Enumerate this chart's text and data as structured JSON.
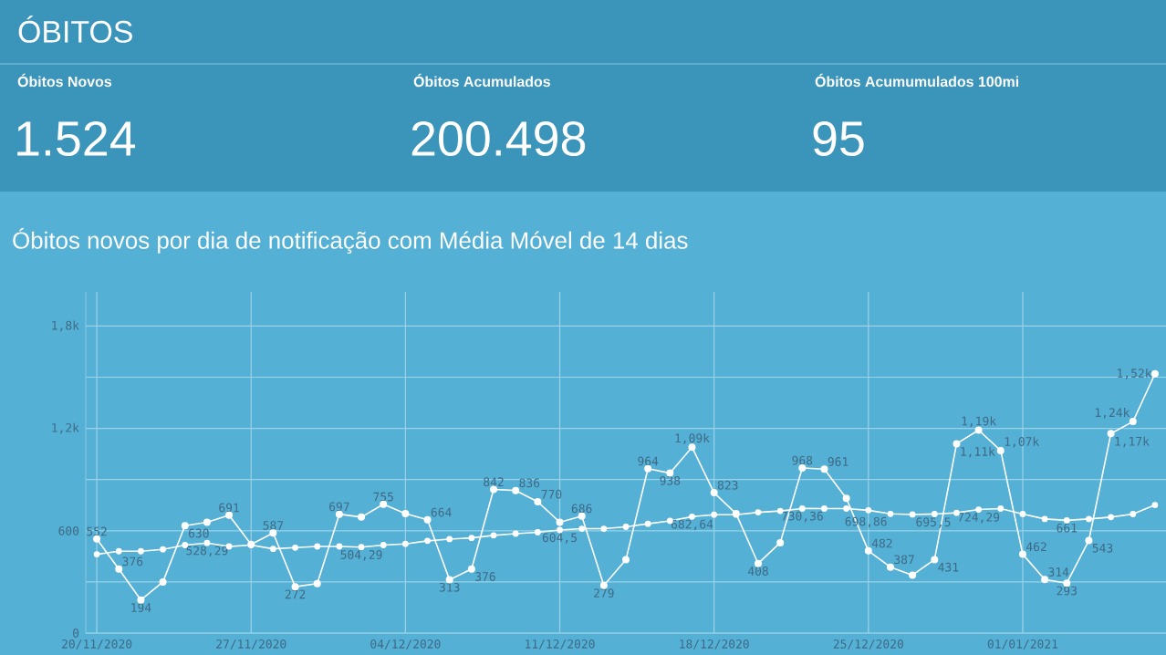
{
  "chart_data": [
    {
      "type": "other",
      "title": "ÓBITOS",
      "categories": [
        "Óbitos Novos",
        "Óbitos Acumulados",
        "Óbitos Acumumulados 100mi"
      ],
      "value_labels": [
        "1.524",
        "200.498",
        "95"
      ]
    },
    {
      "type": "line",
      "title": "Óbitos novos por dia de notificação com Média Móvel de 14 dias",
      "x": [
        "2020-11-20",
        "2020-11-21",
        "2020-11-22",
        "2020-11-23",
        "2020-11-24",
        "2020-11-25",
        "2020-11-26",
        "2020-11-27",
        "2020-11-28",
        "2020-11-29",
        "2020-11-30",
        "2020-12-01",
        "2020-12-02",
        "2020-12-03",
        "2020-12-04",
        "2020-12-05",
        "2020-12-06",
        "2020-12-07",
        "2020-12-08",
        "2020-12-09",
        "2020-12-10",
        "2020-12-11",
        "2020-12-12",
        "2020-12-13",
        "2020-12-14",
        "2020-12-15",
        "2020-12-16",
        "2020-12-17",
        "2020-12-18",
        "2020-12-19",
        "2020-12-20",
        "2020-12-21",
        "2020-12-22",
        "2020-12-23",
        "2020-12-24",
        "2020-12-25",
        "2020-12-26",
        "2020-12-27",
        "2020-12-28",
        "2020-12-29",
        "2020-12-30",
        "2020-12-31",
        "2021-01-01",
        "2021-01-02",
        "2021-01-03",
        "2021-01-04",
        "2021-01-05",
        "2021-01-06",
        "2021-01-07"
      ],
      "series": [
        {
          "color": "#ffffff",
          "marker": "circle",
          "values": [
            552,
            376,
            194,
            300,
            630,
            650,
            691,
            520,
            587,
            272,
            290,
            697,
            680,
            755,
            700,
            664,
            313,
            376,
            842,
            836,
            770,
            650,
            686,
            279,
            430,
            964,
            938,
            1090,
            823,
            700,
            408,
            530,
            968,
            961,
            790,
            482,
            387,
            340,
            431,
            1110,
            1190,
            1070,
            462,
            314,
            293,
            543,
            1170,
            1240,
            1520
          ],
          "value_labels": [
            "552",
            "376",
            "194",
            null,
            "630",
            null,
            "691",
            null,
            "587",
            "272",
            null,
            "697",
            null,
            "755",
            null,
            "664",
            "313",
            "376",
            "842",
            "836",
            "770",
            null,
            "686",
            "279",
            null,
            "964",
            "938",
            "1,09k",
            "823",
            null,
            "408",
            null,
            "968",
            "961",
            null,
            "482",
            "387",
            null,
            "431",
            "1,11k",
            "1,19k",
            "1,07k",
            "462",
            "314",
            "293",
            "543",
            "1,17k",
            "1,24k",
            "1,52k"
          ]
        },
        {
          "color": "#ffffff",
          "marker": "circle",
          "values": [
            462,
            480,
            480,
            491,
            516,
            528.29,
            508,
            516,
            494,
            501,
            508,
            508,
            504.29,
            516,
            523,
            541,
            551,
            558,
            573,
            583,
            591,
            604.5,
            612,
            612,
            623,
            641,
            658,
            682.64,
            694,
            694,
            708,
            716,
            730.36,
            730,
            730,
            720,
            698.86,
            695.5,
            698,
            705,
            724.29,
            730,
            698,
            669,
            661,
            669,
            680,
            698,
            751
          ],
          "value_labels": [
            null,
            null,
            null,
            null,
            null,
            "528,29",
            null,
            null,
            null,
            null,
            null,
            null,
            "504,29",
            null,
            null,
            null,
            null,
            null,
            null,
            null,
            null,
            "604,5",
            null,
            null,
            null,
            null,
            null,
            "682,64",
            null,
            null,
            null,
            null,
            "730,36",
            null,
            null,
            null,
            "698,86",
            "695,5",
            null,
            null,
            "724,29",
            null,
            null,
            null,
            "661",
            null,
            null,
            null,
            null
          ]
        }
      ],
      "xlim": [
        "2020-11-19T12:00",
        "2021-01-07T12:00"
      ],
      "xticks": [
        {
          "value": "2020-11-20",
          "label": "20/11/2020"
        },
        {
          "value": "2020-11-27",
          "label": "27/11/2020"
        },
        {
          "value": "2020-12-04",
          "label": "04/12/2020"
        },
        {
          "value": "2020-12-11",
          "label": "11/12/2020"
        },
        {
          "value": "2020-12-18",
          "label": "18/12/2020"
        },
        {
          "value": "2020-12-25",
          "label": "25/12/2020"
        },
        {
          "value": "2021-01-01",
          "label": "01/01/2021"
        }
      ],
      "ylim": [
        0,
        2000
      ],
      "yticks": [
        {
          "value": 0,
          "label": "0"
        },
        {
          "value": 300,
          "label": null
        },
        {
          "value": 600,
          "label": "600"
        },
        {
          "value": 900,
          "label": null
        },
        {
          "value": 1200,
          "label": "1,2k"
        },
        {
          "value": 1500,
          "label": null
        },
        {
          "value": 1800,
          "label": "1,8k"
        }
      ],
      "grid": true
    }
  ]
}
